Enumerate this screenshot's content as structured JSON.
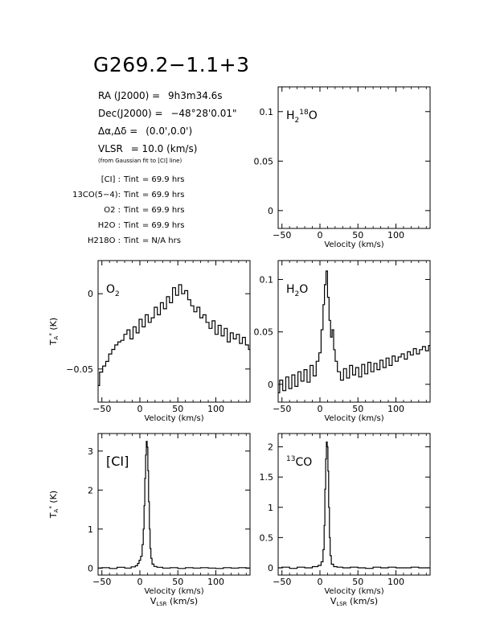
{
  "header": {
    "source_name": "G269.2−1.1+3",
    "ra_label": "RA (J2000)  =",
    "ra_value": "9h3m34.6s",
    "dec_label": "Dec(J2000)  =",
    "dec_value": "−48°28'0.01\"",
    "offset_label": "Δα,Δδ  =",
    "offset_value": "(0.0',0.0')",
    "vlsr_label": "VLSR",
    "vlsr_value": "=  10.0  (km/s)",
    "vlsr_note": "(from Gaussian fit to [CI] line)"
  },
  "integration_times": [
    {
      "line": "[CI] :",
      "label": "Tint",
      "value": "=  69.9  hrs"
    },
    {
      "line": "13CO(5−4):",
      "label": "Tint",
      "value": "=  69.9  hrs"
    },
    {
      "line": "O2 :",
      "label": "Tint",
      "value": "=  69.9  hrs"
    },
    {
      "line": "H2O :",
      "label": "Tint",
      "value": "=  69.9  hrs"
    },
    {
      "line": "H218O :",
      "label": "Tint",
      "value": "=  N/A  hrs"
    }
  ],
  "chart_data": [
    {
      "type": "line",
      "id": "h218o",
      "panel_label": "H218O",
      "xlabel": "Velocity (km/s)",
      "ylabel": "",
      "xlim": [
        -55,
        145
      ],
      "ylim": [
        -0.018,
        0.125
      ],
      "xticks": [
        -50,
        0,
        50,
        100
      ],
      "yticks": [
        0,
        0.05,
        0.1
      ],
      "ytick_labels": [
        "0",
        "0.05",
        "0.1"
      ],
      "x": [],
      "y": []
    },
    {
      "type": "line",
      "id": "o2",
      "panel_label": "O2",
      "xlabel": "Velocity (km/s)",
      "ylabel": "TA* (K)",
      "xlim": [
        -55,
        145
      ],
      "ylim": [
        -0.072,
        0.022
      ],
      "xticks": [
        -50,
        0,
        50,
        100
      ],
      "yticks": [
        -0.05,
        0
      ],
      "ytick_labels": [
        "−0.05",
        "0"
      ],
      "x": [
        -55,
        -51,
        -47,
        -43,
        -39,
        -35,
        -31,
        -27,
        -23,
        -19,
        -15,
        -11,
        -7,
        -3,
        1,
        5,
        9,
        13,
        17,
        21,
        25,
        29,
        33,
        37,
        41,
        45,
        49,
        53,
        57,
        61,
        65,
        69,
        73,
        77,
        81,
        85,
        89,
        93,
        97,
        101,
        105,
        109,
        113,
        117,
        121,
        125,
        129,
        133,
        137,
        141,
        145
      ],
      "y": [
        -0.061,
        -0.052,
        -0.048,
        -0.045,
        -0.04,
        -0.037,
        -0.034,
        -0.032,
        -0.031,
        -0.027,
        -0.024,
        -0.03,
        -0.022,
        -0.026,
        -0.017,
        -0.022,
        -0.014,
        -0.019,
        -0.016,
        -0.009,
        -0.014,
        -0.006,
        -0.01,
        -0.002,
        -0.006,
        0.004,
        -0.001,
        0.006,
        0.0,
        0.002,
        -0.004,
        -0.008,
        -0.012,
        -0.009,
        -0.016,
        -0.014,
        -0.019,
        -0.023,
        -0.018,
        -0.027,
        -0.021,
        -0.028,
        -0.023,
        -0.032,
        -0.026,
        -0.03,
        -0.027,
        -0.033,
        -0.029,
        -0.034,
        -0.037
      ]
    },
    {
      "type": "line",
      "id": "h2o",
      "panel_label": "H2O",
      "xlabel": "Velocity (km/s)",
      "ylabel": "",
      "xlim": [
        -55,
        145
      ],
      "ylim": [
        -0.017,
        0.118
      ],
      "xticks": [
        -50,
        0,
        50,
        100
      ],
      "yticks": [
        0,
        0.05,
        0.1
      ],
      "ytick_labels": [
        "0",
        "0.05",
        "0.1"
      ],
      "x": [
        -55,
        -51,
        -47,
        -43,
        -39,
        -35,
        -31,
        -27,
        -23,
        -19,
        -15,
        -11,
        -7,
        -3,
        0,
        3,
        5,
        7,
        9,
        11,
        13,
        15,
        17,
        19,
        21,
        25,
        29,
        33,
        37,
        41,
        45,
        49,
        53,
        57,
        61,
        65,
        69,
        73,
        77,
        81,
        85,
        89,
        93,
        97,
        101,
        105,
        109,
        113,
        117,
        121,
        125,
        129,
        133,
        137,
        141,
        145
      ],
      "y": [
        -0.008,
        0.004,
        -0.006,
        0.007,
        -0.004,
        0.009,
        -0.002,
        0.012,
        0.003,
        0.014,
        0.002,
        0.018,
        0.008,
        0.022,
        0.03,
        0.052,
        0.076,
        0.095,
        0.108,
        0.083,
        0.061,
        0.045,
        0.052,
        0.033,
        0.022,
        0.012,
        0.004,
        0.015,
        0.006,
        0.018,
        0.009,
        0.016,
        0.007,
        0.019,
        0.01,
        0.021,
        0.012,
        0.02,
        0.014,
        0.023,
        0.016,
        0.025,
        0.018,
        0.027,
        0.022,
        0.026,
        0.029,
        0.024,
        0.031,
        0.028,
        0.034,
        0.029,
        0.033,
        0.036,
        0.032,
        0.037
      ]
    },
    {
      "type": "line",
      "id": "ci",
      "panel_label": "[CI]",
      "xlabel": "Velocity (km/s)",
      "xlabel2": "VLSR (km/s)",
      "ylabel": "TA* (K)",
      "xlim": [
        -55,
        145
      ],
      "ylim": [
        -0.18,
        3.45
      ],
      "xticks": [
        -50,
        0,
        50,
        100
      ],
      "yticks": [
        0,
        1,
        2,
        3
      ],
      "ytick_labels": [
        "0",
        "1",
        "2",
        "3"
      ],
      "x": [
        -55,
        -45,
        -35,
        -25,
        -15,
        -8,
        -4,
        -2,
        0,
        2,
        4,
        5,
        6,
        7,
        8,
        9,
        10,
        11,
        12,
        13,
        14,
        15,
        17,
        20,
        25,
        35,
        45,
        55,
        65,
        75,
        85,
        95,
        105,
        115,
        125,
        135,
        145
      ],
      "y": [
        0.0,
        0.01,
        -0.01,
        0.02,
        0.0,
        0.03,
        0.06,
        0.12,
        0.2,
        0.3,
        0.6,
        1.0,
        1.6,
        2.3,
        2.9,
        3.25,
        3.1,
        2.5,
        1.7,
        1.0,
        0.5,
        0.25,
        0.1,
        0.04,
        0.02,
        0.0,
        0.01,
        -0.01,
        0.01,
        0.0,
        0.01,
        0.0,
        -0.01,
        0.01,
        0.0,
        0.01,
        0.0
      ]
    },
    {
      "type": "line",
      "id": "co13",
      "panel_label": "13CO",
      "xlabel": "Velocity (km/s)",
      "xlabel2": "VLSR (km/s)",
      "ylabel": "",
      "xlim": [
        -55,
        145
      ],
      "ylim": [
        -0.12,
        2.22
      ],
      "xticks": [
        -50,
        0,
        50,
        100
      ],
      "yticks": [
        0,
        0.5,
        1,
        1.5,
        2
      ],
      "ytick_labels": [
        "0",
        "0.5",
        "1",
        "1.5",
        "2"
      ],
      "x": [
        -55,
        -45,
        -35,
        -25,
        -15,
        -5,
        0,
        3,
        5,
        6,
        7,
        8,
        9,
        10,
        11,
        12,
        13,
        14,
        16,
        20,
        25,
        35,
        45,
        55,
        65,
        75,
        85,
        95,
        105,
        115,
        125,
        135,
        145
      ],
      "y": [
        0.0,
        0.01,
        -0.01,
        0.01,
        0.0,
        0.02,
        0.04,
        0.1,
        0.3,
        0.7,
        1.3,
        1.8,
        2.08,
        2.0,
        1.6,
        1.0,
        0.5,
        0.2,
        0.06,
        0.02,
        0.01,
        0.0,
        0.01,
        0.0,
        -0.01,
        0.01,
        0.0,
        0.01,
        0.0,
        0.0,
        0.01,
        0.0,
        0.0
      ]
    }
  ]
}
